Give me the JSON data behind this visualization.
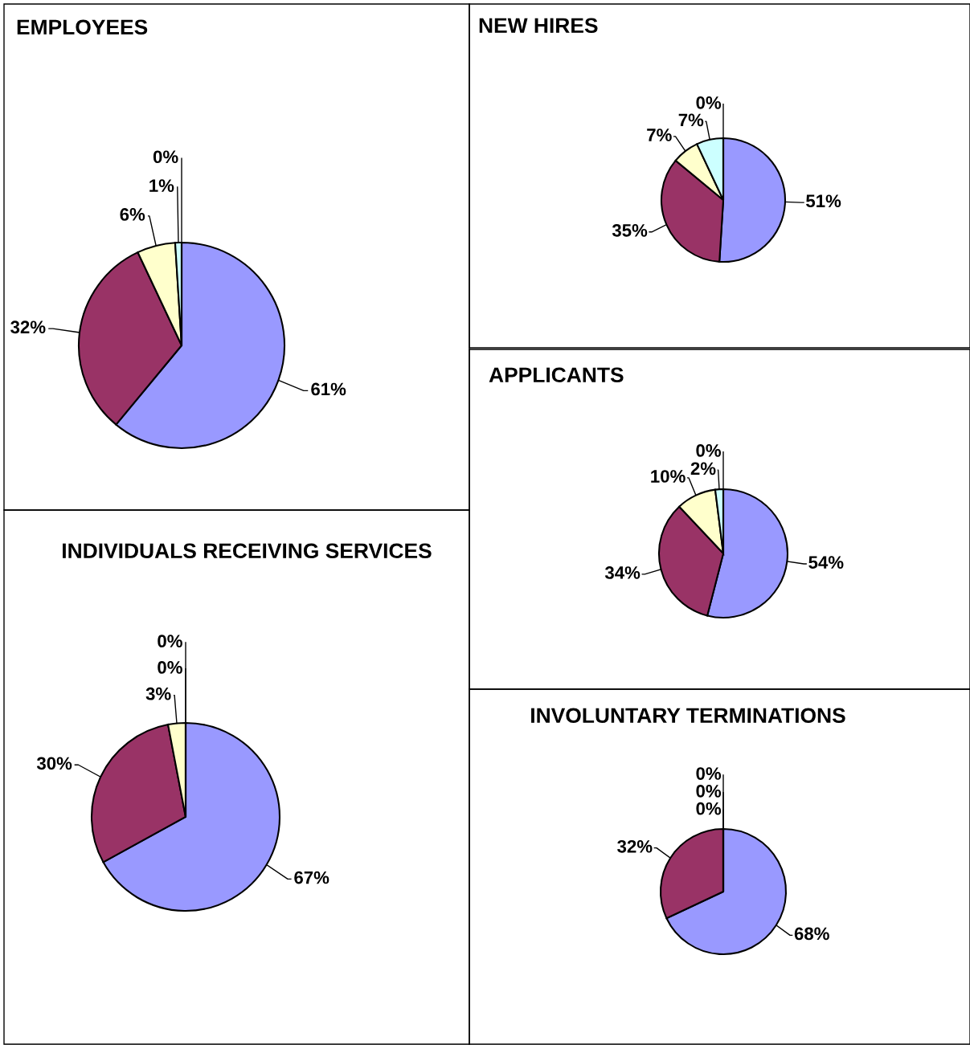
{
  "chart_data": [
    {
      "type": "pie",
      "title": "EMPLOYEES",
      "categories": [
        null,
        null,
        null,
        null,
        null
      ],
      "values": [
        61,
        32,
        6,
        1,
        0
      ],
      "value_labels": [
        "61%",
        "32%",
        "6%",
        "1%",
        "0%"
      ],
      "colors": [
        "#9999ff",
        "#993366",
        "#ffffcc",
        "#ccffff",
        "#660066"
      ]
    },
    {
      "type": "pie",
      "title": "NEW HIRES",
      "categories": [
        null,
        null,
        null,
        null,
        null
      ],
      "values": [
        51,
        35,
        7,
        7,
        0
      ],
      "value_labels": [
        "51%",
        "35%",
        "7%",
        "7%",
        "0%"
      ],
      "colors": [
        "#9999ff",
        "#993366",
        "#ffffcc",
        "#ccffff",
        "#660066"
      ]
    },
    {
      "type": "pie",
      "title": "APPLICANTS",
      "categories": [
        null,
        null,
        null,
        null,
        null
      ],
      "values": [
        54,
        34,
        10,
        2,
        0
      ],
      "value_labels": [
        "54%",
        "34%",
        "10%",
        "2%",
        "0%"
      ],
      "colors": [
        "#9999ff",
        "#993366",
        "#ffffcc",
        "#ccffff",
        "#660066"
      ]
    },
    {
      "type": "pie",
      "title": "INDIVIDUALS RECEIVING SERVICES",
      "categories": [
        null,
        null,
        null,
        null,
        null
      ],
      "values": [
        67,
        30,
        3,
        0,
        0
      ],
      "value_labels": [
        "67%",
        "30%",
        "3%",
        "0%",
        "0%"
      ],
      "colors": [
        "#9999ff",
        "#993366",
        "#ffffcc",
        "#ccffff",
        "#660066"
      ]
    },
    {
      "type": "pie",
      "title": "INVOLUNTARY TERMINATIONS",
      "categories": [
        null,
        null,
        null,
        null,
        null
      ],
      "values": [
        68,
        32,
        0,
        0,
        0
      ],
      "value_labels": [
        "68%",
        "32%",
        "0%",
        "0%",
        "0%"
      ],
      "colors": [
        "#9999ff",
        "#993366",
        "#ffffcc",
        "#ccffff",
        "#660066"
      ]
    }
  ]
}
